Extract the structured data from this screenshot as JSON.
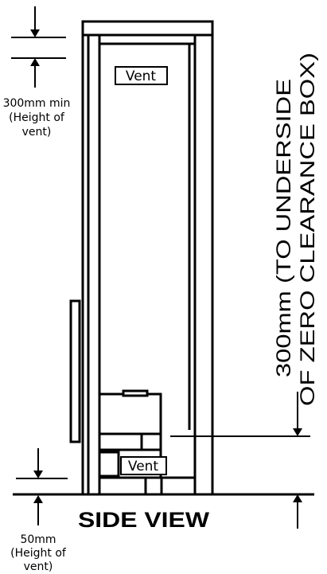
{
  "labels": {
    "top_vent": "Vent",
    "bottom_vent": "Vent",
    "top_dimension_line1": "300mm min",
    "top_dimension_line2": "(Height of",
    "top_dimension_line3": "vent)",
    "bottom_dimension_line1": "50mm",
    "bottom_dimension_line2": "(Height of",
    "bottom_dimension_line3": "vent)",
    "clearance_line1": "300mm (TO UNDERSIDE",
    "clearance_line2": "OF ZERO CLEARANCE BOX)",
    "view_title": "SIDE VIEW"
  }
}
